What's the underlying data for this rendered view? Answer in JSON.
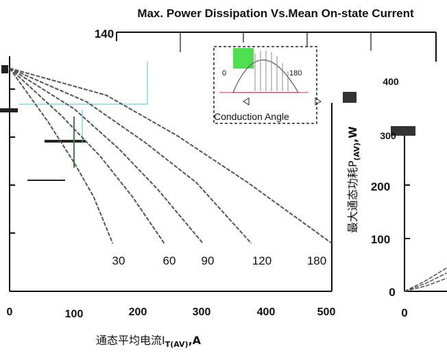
{
  "chart_data": [
    {
      "type": "line",
      "title": "",
      "xlabel": "通态平均电流I",
      "xlabel_sub": "T(AV)",
      "xlabel_unit": ",A",
      "xlim": [
        0,
        500
      ],
      "x_ticks": [
        "0",
        "100",
        "200",
        "300",
        "400",
        "500"
      ],
      "ylim": [
        0,
        140
      ],
      "y_ticks": [],
      "series": [
        {
          "name": "30",
          "x": [
            0,
            60,
            100,
            130,
            160
          ],
          "y": [
            130,
            90,
            60,
            35,
            0
          ]
        },
        {
          "name": "60",
          "x": [
            0,
            80,
            140,
            190,
            240
          ],
          "y": [
            130,
            95,
            65,
            35,
            0
          ]
        },
        {
          "name": "90",
          "x": [
            0,
            100,
            170,
            230,
            300
          ],
          "y": [
            130,
            100,
            70,
            40,
            0
          ]
        },
        {
          "name": "120",
          "x": [
            0,
            120,
            210,
            290,
            375
          ],
          "y": [
            130,
            105,
            75,
            45,
            0
          ]
        },
        {
          "name": "180",
          "x": [
            0,
            150,
            260,
            370,
            500
          ],
          "y": [
            130,
            110,
            80,
            45,
            0
          ]
        }
      ],
      "curve_labels": [
        "30",
        "60",
        "90",
        "120",
        "180"
      ],
      "inset": {
        "start_label": "0",
        "end_label": "180",
        "caption": "Conduction Angle"
      }
    },
    {
      "type": "line",
      "title": "Max. Power Dissipation Vs.Mean On-state Current",
      "top_axis_value": "140",
      "xlabel": "",
      "ylabel": "最大通态功耗P",
      "ylabel_sub": "(AV)",
      "ylabel_unit": ",W",
      "ylim": [
        0,
        400
      ],
      "y_ticks": [
        "0",
        "100",
        "200",
        "300",
        "400"
      ],
      "x_ticks": [
        "0"
      ],
      "series": [
        {
          "name": "",
          "x": [
            0,
            40,
            80
          ],
          "y": [
            0,
            20,
            45
          ]
        },
        {
          "name": "",
          "x": [
            0,
            40,
            80
          ],
          "y": [
            0,
            15,
            35
          ]
        },
        {
          "name": "",
          "x": [
            0,
            40,
            80
          ],
          "y": [
            0,
            10,
            25
          ]
        }
      ]
    }
  ],
  "colors": {
    "axis": "#111111",
    "curve": "#555555",
    "highlight_green": "#3ddc3d",
    "cyan": "#3fc8d8",
    "inset_red": "#cc3333"
  }
}
